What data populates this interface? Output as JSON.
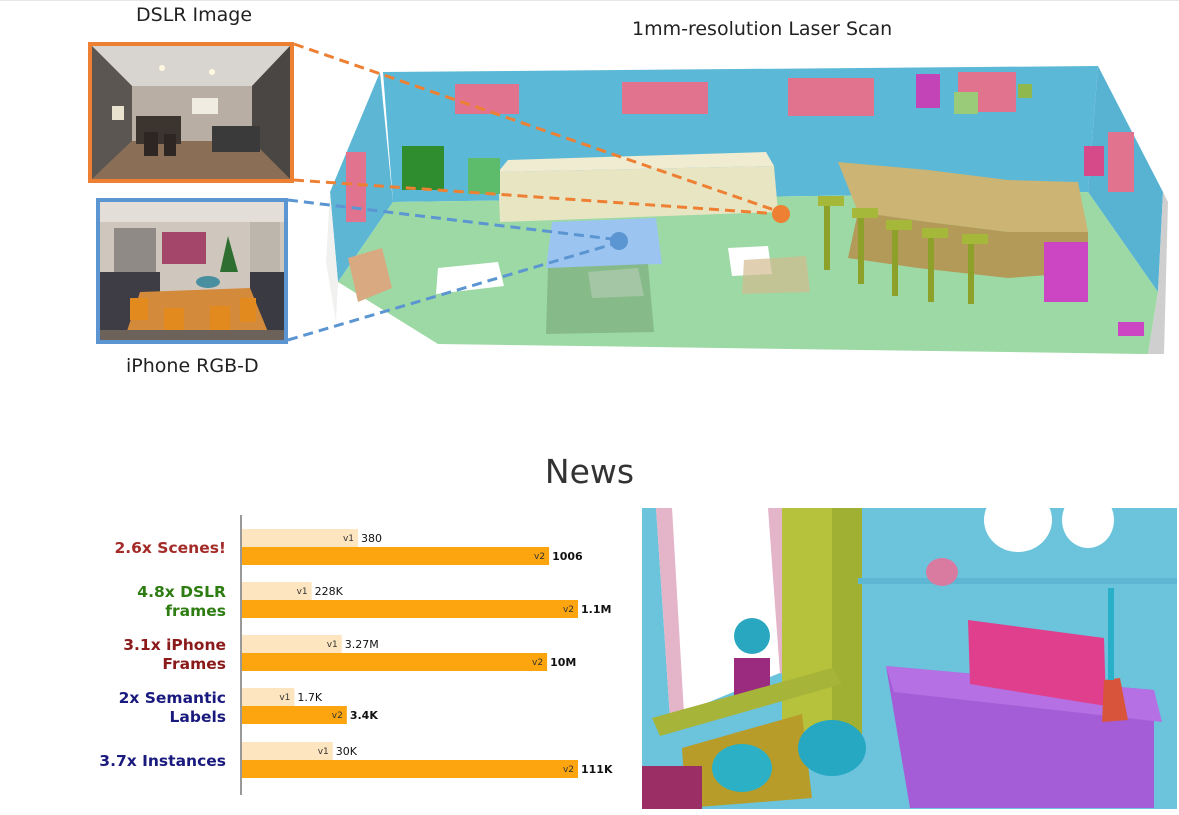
{
  "labels": {
    "dslr_caption": "DSLR Image",
    "scan_caption": "1mm-resolution Laser Scan",
    "iphone_caption": "iPhone RGB-D",
    "news_heading": "News"
  },
  "colors": {
    "dslr_accent": "#ee8033",
    "iphone_accent": "#5b95d2",
    "v1_bar": "#fde5c0",
    "v2_bar": "#fca50e"
  },
  "chart_data": {
    "type": "bar",
    "orientation": "horizontal",
    "series_labels": [
      "v1",
      "v2"
    ],
    "groups": [
      {
        "label": [
          "2.6x Scenes!"
        ],
        "color": "#a32b28",
        "v1": 380,
        "v2": 1006,
        "v1_label": "380",
        "v2_label": "1006"
      },
      {
        "label": [
          "4.8x DSLR",
          "frames"
        ],
        "color": "#2e7d12",
        "v1": 228000,
        "v2": 1100000,
        "v1_label": "228K",
        "v2_label": "1.1M"
      },
      {
        "label": [
          "3.1x iPhone",
          "Frames"
        ],
        "color": "#8b1a1a",
        "v1": 3270000,
        "v2": 10000000,
        "v1_label": "3.27M",
        "v2_label": "10M"
      },
      {
        "label": [
          "2x Semantic",
          "Labels"
        ],
        "color": "#1a1a7e",
        "v1": 1700,
        "v2": 3400,
        "v1_label": "1.7K",
        "v2_label": "3.4K"
      },
      {
        "label": [
          "3.7x Instances"
        ],
        "color": "#1a1a7e",
        "v1": 30000,
        "v2": 111000,
        "v1_label": "30K",
        "v2_label": "111K"
      }
    ]
  }
}
